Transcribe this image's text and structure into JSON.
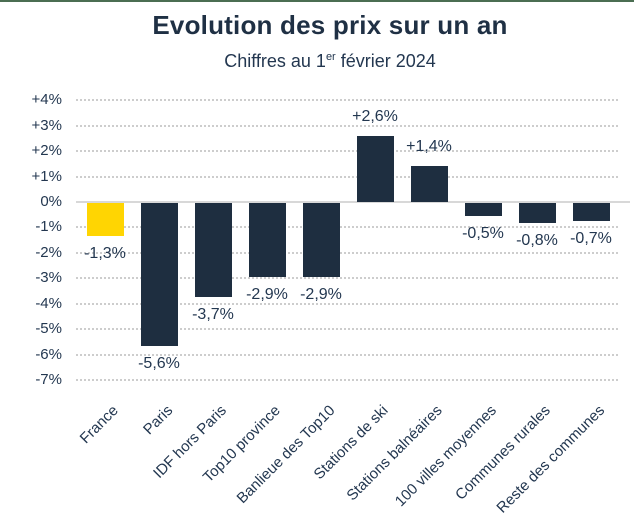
{
  "page": {
    "background": "#ffffff",
    "top_border_color": "#4b6e52"
  },
  "header": {
    "title": "Evolution des prix sur un an",
    "subtitle": {
      "prefix": "Chiffres au 1",
      "superscript": "er",
      "suffix": " février 2024"
    }
  },
  "chart_data": {
    "type": "bar",
    "title": "Evolution des prix sur un an",
    "subtitle": "Chiffres au 1er février 2024",
    "categories": [
      "France",
      "Paris",
      "IDF hors Paris",
      "Top10 province",
      "Banlieue des Top10",
      "Stations de ski",
      "Stations balnéaires",
      "100 villes moyennes",
      "Communes rurales",
      "Reste des communes"
    ],
    "values": [
      -1.3,
      -5.6,
      -3.7,
      -2.9,
      -2.9,
      2.6,
      1.4,
      -0.5,
      -0.8,
      -0.7
    ],
    "value_labels": [
      "-1,3%",
      "-5,6%",
      "-3,7%",
      "-2,9%",
      "-2,9%",
      "+2,6%",
      "+1,4%",
      "-0,5%",
      "-0,8%",
      "-0,7%"
    ],
    "ytick_values": [
      4,
      3,
      2,
      1,
      0,
      -1,
      -2,
      -3,
      -4,
      -5,
      -6,
      -7
    ],
    "ytick_labels": [
      "+4%",
      "+3%",
      "+2%",
      "+1%",
      "0%",
      "-1%",
      "-2%",
      "-3%",
      "-4%",
      "-5%",
      "-6%",
      "-7%"
    ],
    "ylim": [
      -7,
      4
    ],
    "xlabel": "",
    "ylabel": "",
    "legend": "none",
    "grid": "dotted-horizontal",
    "bar_color": "#1e2e40",
    "highlight_color": "#ffd502",
    "highlight_index": 0,
    "text_color": "#233750",
    "title_color": "#1f3044",
    "gridline_color": "#cdcdcd",
    "zero_line_color": "#d8d8d8"
  }
}
